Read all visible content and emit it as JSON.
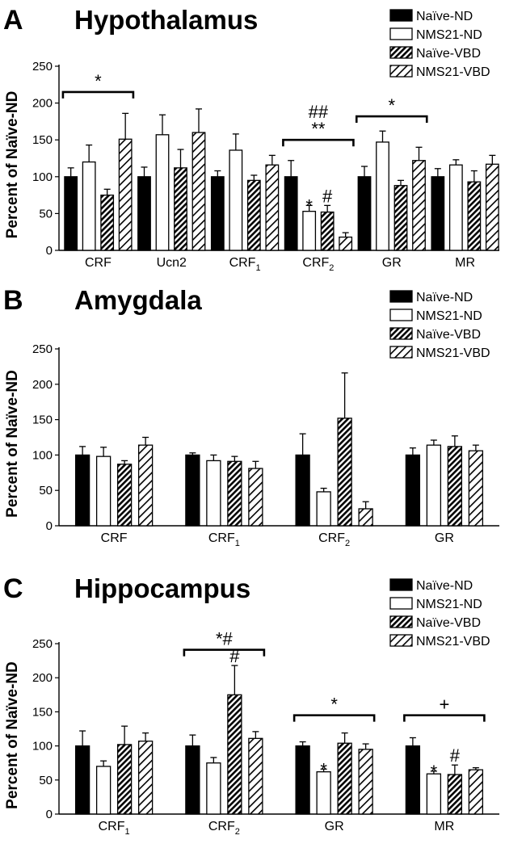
{
  "chart_data": [
    {
      "type": "bar",
      "panel": "A",
      "title": "Hypothalamus",
      "ylabel": "Percent of Naïve-ND",
      "ylim": [
        0,
        250
      ],
      "yticks": [
        "0",
        "50",
        "100",
        "150",
        "200",
        "250"
      ],
      "categories": [
        {
          "label": "CRF",
          "sub": ""
        },
        {
          "label": "Ucn2",
          "sub": ""
        },
        {
          "label": "CRF",
          "sub": "1"
        },
        {
          "label": "CRF",
          "sub": "2"
        },
        {
          "label": "GR",
          "sub": ""
        },
        {
          "label": "MR",
          "sub": ""
        }
      ],
      "series": [
        {
          "name": "Naïve-ND",
          "values": [
            100,
            100,
            100,
            100,
            100,
            100
          ],
          "errors": [
            12,
            13,
            8,
            22,
            14,
            11
          ]
        },
        {
          "name": "NMS21-ND",
          "values": [
            120,
            157,
            136,
            53,
            147,
            116
          ],
          "errors": [
            23,
            27,
            22,
            8,
            15,
            7
          ]
        },
        {
          "name": "Naïve-VBD",
          "values": [
            75,
            112,
            95,
            52,
            88,
            93
          ],
          "errors": [
            8,
            25,
            7,
            9,
            7,
            15
          ]
        },
        {
          "name": "NMS21-VBD",
          "values": [
            151,
            160,
            116,
            18,
            122,
            117
          ],
          "errors": [
            35,
            32,
            13,
            6,
            18,
            12
          ]
        }
      ],
      "annotations": [
        {
          "type": "bracket",
          "from": 0,
          "to": 0,
          "level": 215,
          "text": [
            "*"
          ]
        },
        {
          "type": "bracket",
          "from": 3,
          "to": 3,
          "level": 150,
          "text": [
            "##",
            "**"
          ]
        },
        {
          "type": "bracket",
          "from": 4,
          "to": 4,
          "level": 182,
          "text": [
            "*"
          ]
        },
        {
          "type": "star",
          "category": 3,
          "series": 1,
          "text": "*"
        },
        {
          "type": "star",
          "category": 3,
          "series": 2,
          "text": "#"
        }
      ]
    },
    {
      "type": "bar",
      "panel": "B",
      "title": "Amygdala",
      "ylabel": "Percent of Naïve-ND",
      "ylim": [
        0,
        250
      ],
      "yticks": [
        "0",
        "50",
        "100",
        "150",
        "200",
        "250"
      ],
      "categories": [
        {
          "label": "CRF",
          "sub": ""
        },
        {
          "label": "CRF",
          "sub": "1"
        },
        {
          "label": "CRF",
          "sub": "2"
        },
        {
          "label": "GR",
          "sub": ""
        }
      ],
      "series": [
        {
          "name": "Naïve-ND",
          "values": [
            100,
            100,
            100,
            100
          ],
          "errors": [
            12,
            3,
            30,
            10
          ]
        },
        {
          "name": "NMS21-ND",
          "values": [
            98,
            92,
            48,
            114
          ],
          "errors": [
            13,
            8,
            5,
            7
          ]
        },
        {
          "name": "Naïve-VBD",
          "values": [
            87,
            91,
            152,
            112
          ],
          "errors": [
            5,
            7,
            64,
            15
          ]
        },
        {
          "name": "NMS21-VBD",
          "values": [
            114,
            81,
            24,
            106
          ],
          "errors": [
            11,
            10,
            10,
            8
          ]
        }
      ],
      "annotations": []
    },
    {
      "type": "bar",
      "panel": "C",
      "title": "Hippocampus",
      "ylabel": "Percent of Naïve-ND",
      "ylim": [
        0,
        250
      ],
      "yticks": [
        "0",
        "50",
        "100",
        "150",
        "200",
        "250"
      ],
      "categories": [
        {
          "label": "CRF",
          "sub": "1"
        },
        {
          "label": "CRF",
          "sub": "2"
        },
        {
          "label": "GR",
          "sub": ""
        },
        {
          "label": "MR",
          "sub": ""
        }
      ],
      "series": [
        {
          "name": "Naïve-ND",
          "values": [
            100,
            100,
            100,
            100
          ],
          "errors": [
            22,
            16,
            6,
            12
          ]
        },
        {
          "name": "NMS21-ND",
          "values": [
            70,
            75,
            62,
            59
          ],
          "errors": [
            8,
            8,
            4,
            4
          ]
        },
        {
          "name": "Naïve-VBD",
          "values": [
            102,
            175,
            104,
            58
          ],
          "errors": [
            27,
            43,
            15,
            14
          ]
        },
        {
          "name": "NMS21-VBD",
          "values": [
            107,
            111,
            95,
            65
          ],
          "errors": [
            12,
            10,
            8,
            3
          ]
        }
      ],
      "annotations": [
        {
          "type": "bracket",
          "from": 1,
          "to": 1,
          "level": 241,
          "text": [
            "*#"
          ]
        },
        {
          "type": "star",
          "category": 1,
          "series": 2,
          "text": "#",
          "above_error": true
        },
        {
          "type": "bracket",
          "from": 2,
          "to": 2,
          "level": 145,
          "text": [
            "*"
          ]
        },
        {
          "type": "star",
          "category": 2,
          "series": 1,
          "text": "*"
        },
        {
          "type": "bracket",
          "from": 3,
          "to": 3,
          "level": 145,
          "text": [
            "+"
          ]
        },
        {
          "type": "star",
          "category": 3,
          "series": 1,
          "text": "*"
        },
        {
          "type": "star",
          "category": 3,
          "series": 2,
          "text": "#",
          "above_error": true
        }
      ]
    }
  ],
  "legend": [
    "Naïve-ND",
    "NMS21-ND",
    "Naïve-VBD",
    "NMS21-VBD"
  ],
  "colors": {
    "bar_stroke": "#000000",
    "fill_solid": "#000000",
    "fill_open": "#ffffff",
    "background": "#ffffff"
  }
}
